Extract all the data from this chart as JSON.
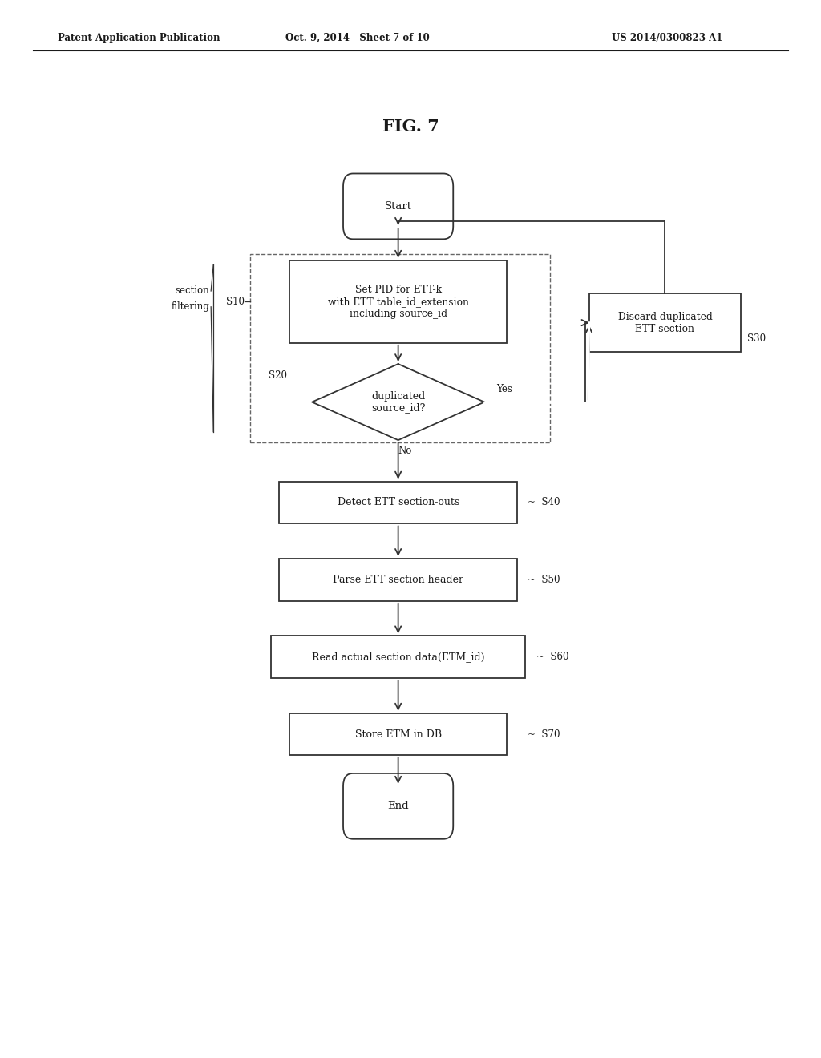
{
  "title": "FIG. 7",
  "header_left": "Patent Application Publication",
  "header_mid": "Oct. 9, 2014   Sheet 7 of 10",
  "header_right": "US 2014/0300823 A1",
  "bg_color": "#ffffff",
  "text_color": "#1a1a1a",
  "line_color": "#333333"
}
